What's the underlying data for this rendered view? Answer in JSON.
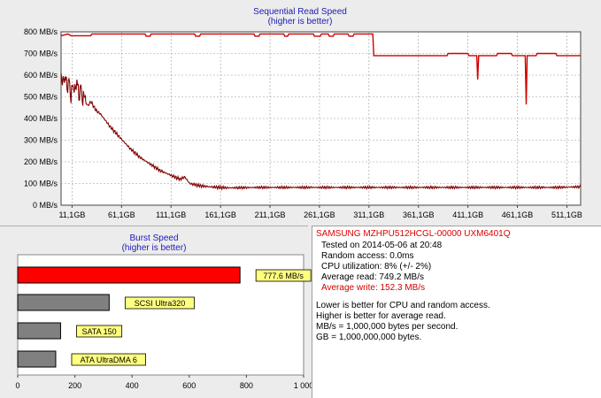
{
  "read_chart": {
    "title": "Sequential Read Speed",
    "subtitle": "(higher is better)",
    "y_ticks": [
      "800 MB/s",
      "700 MB/s",
      "600 MB/s",
      "500 MB/s",
      "400 MB/s",
      "300 MB/s",
      "200 MB/s",
      "100 MB/s",
      "0 MB/s"
    ],
    "x_ticks": [
      "11,1GB",
      "61,1GB",
      "111,1GB",
      "161,1GB",
      "211,1GB",
      "261,1GB",
      "311,1GB",
      "361,1GB",
      "411,1GB",
      "461,1GB",
      "511,1GB"
    ],
    "colors": {
      "read": "#d00000",
      "write": "#800000",
      "grid": "#999999"
    }
  },
  "burst_chart": {
    "title": "Burst Speed",
    "subtitle": "(higher is better)",
    "x_ticks": [
      "0",
      "200",
      "400",
      "600",
      "800",
      "1 000"
    ],
    "bars": [
      {
        "label": "777.6 MB/s",
        "color": "#ff0000"
      },
      {
        "label": "SCSI Ultra320",
        "color": "#808080"
      },
      {
        "label": "SATA 150",
        "color": "#808080"
      },
      {
        "label": "ATA UltraDMA 6",
        "color": "#808080"
      }
    ],
    "label_bg": "#ffff80"
  },
  "chart_data": [
    {
      "type": "line",
      "title": "Sequential Read Speed",
      "subtitle": "(higher is better)",
      "xlabel": "",
      "ylabel": "",
      "xlim": [
        0,
        525
      ],
      "ylim": [
        0,
        800
      ],
      "y_unit": "MB/s",
      "x_unit": "GB",
      "series": [
        {
          "name": "",
          "color": "#d00000",
          "points": [
            [
              0,
              782
            ],
            [
              7,
              790
            ],
            [
              10,
              782
            ],
            [
              30,
              782
            ],
            [
              31,
              790
            ],
            [
              85,
              790
            ],
            [
              86,
              780
            ],
            [
              90,
              780
            ],
            [
              91,
              790
            ],
            [
              135,
              790
            ],
            [
              136,
              780
            ],
            [
              140,
              780
            ],
            [
              141,
              790
            ],
            [
              195,
              790
            ],
            [
              196,
              780
            ],
            [
              200,
              780
            ],
            [
              201,
              790
            ],
            [
              225,
              790
            ],
            [
              226,
              780
            ],
            [
              229,
              780
            ],
            [
              230,
              790
            ],
            [
              255,
              790
            ],
            [
              256,
              780
            ],
            [
              262,
              780
            ],
            [
              263,
              790
            ],
            [
              270,
              790
            ],
            [
              271,
              780
            ],
            [
              275,
              780
            ],
            [
              276,
              790
            ],
            [
              290,
              790
            ],
            [
              291,
              780
            ],
            [
              295,
              780
            ],
            [
              296,
              790
            ],
            [
              315,
              790
            ],
            [
              316,
              690
            ],
            [
              390,
              690
            ],
            [
              391,
              700
            ],
            [
              411,
              700
            ],
            [
              412,
              690
            ],
            [
              420,
              690
            ],
            [
              421,
              580
            ],
            [
              422,
              690
            ],
            [
              440,
              690
            ],
            [
              441,
              700
            ],
            [
              455,
              700
            ],
            [
              456,
              690
            ],
            [
              469,
              690
            ],
            [
              470,
              465
            ],
            [
              471,
              690
            ],
            [
              480,
              690
            ],
            [
              481,
              700
            ],
            [
              500,
              700
            ],
            [
              501,
              690
            ],
            [
              525,
              690
            ]
          ]
        },
        {
          "name": "",
          "color": "#800000",
          "points": [
            [
              0,
              610
            ],
            [
              2,
              560
            ],
            [
              4,
              600
            ],
            [
              6,
              540
            ],
            [
              8,
              575
            ],
            [
              10,
              500
            ],
            [
              12,
              560
            ],
            [
              14,
              520
            ],
            [
              16,
              580
            ],
            [
              18,
              500
            ],
            [
              20,
              545
            ],
            [
              22,
              480
            ],
            [
              24,
              510
            ],
            [
              25,
              470
            ],
            [
              28,
              460
            ],
            [
              30,
              480
            ],
            [
              35,
              440
            ],
            [
              40,
              420
            ],
            [
              50,
              360
            ],
            [
              60,
              310
            ],
            [
              70,
              260
            ],
            [
              80,
              220
            ],
            [
              90,
              190
            ],
            [
              100,
              160
            ],
            [
              110,
              140
            ],
            [
              120,
              120
            ],
            [
              125,
              130
            ],
            [
              130,
              100
            ],
            [
              135,
              95
            ],
            [
              140,
              90
            ],
            [
              150,
              85
            ],
            [
              160,
              82
            ],
            [
              170,
              80
            ],
            [
              200,
              82
            ],
            [
              250,
              82
            ],
            [
              300,
              82
            ],
            [
              350,
              82
            ],
            [
              400,
              82
            ],
            [
              450,
              82
            ],
            [
              500,
              82
            ],
            [
              525,
              85
            ]
          ]
        }
      ]
    },
    {
      "type": "bar",
      "title": "Burst Speed",
      "subtitle": "(higher is better)",
      "categories": [
        "777.6 MB/s",
        "SCSI Ultra320",
        "SATA 150",
        "ATA UltraDMA 6"
      ],
      "values": [
        777.6,
        320,
        150,
        133
      ],
      "xlim": [
        0,
        1000
      ]
    }
  ],
  "info": {
    "drive": "SAMSUNG MZHPU512HCGL-00000 UXM6401Q",
    "tested": "Tested on 2014-05-06 at 20:48",
    "random": "Random access: 0.0ms",
    "cpu": "CPU utilization: 8% (+/- 2%)",
    "avg_read": "Average read: 749.2 MB/s",
    "avg_write": "Average write: 152.3 MB/s",
    "note1": "Lower is better for CPU and random access.",
    "note2": "Higher is better for average read.",
    "note3": "MB/s = 1,000,000 bytes per second.",
    "note4": "GB = 1,000,000,000 bytes."
  }
}
